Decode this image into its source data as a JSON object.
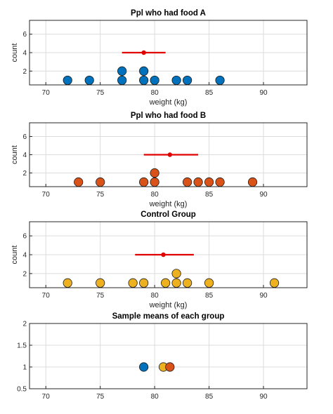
{
  "chart_data": [
    {
      "type": "scatter",
      "title": "Ppl who had food A",
      "xlabel": "weight (kg)",
      "ylabel": "count",
      "xlim": [
        68.5,
        94
      ],
      "ylim": [
        0.5,
        7.5
      ],
      "xticks": [
        70,
        75,
        80,
        85,
        90
      ],
      "yticks": [
        2,
        4,
        6
      ],
      "grid": true,
      "color": "#0072BD",
      "points": [
        [
          72,
          1
        ],
        [
          74,
          1
        ],
        [
          77,
          1
        ],
        [
          77,
          2
        ],
        [
          79,
          1
        ],
        [
          79,
          2
        ],
        [
          80,
          1
        ],
        [
          82,
          1
        ],
        [
          83,
          1
        ],
        [
          86,
          1
        ]
      ],
      "mean": {
        "x": 79,
        "y": 4,
        "lo": 77,
        "hi": 81,
        "color": "#e00000"
      }
    },
    {
      "type": "scatter",
      "title": "Ppl who had food B",
      "xlabel": "weight (kg)",
      "ylabel": "count",
      "xlim": [
        68.5,
        94
      ],
      "ylim": [
        0.5,
        7.5
      ],
      "xticks": [
        70,
        75,
        80,
        85,
        90
      ],
      "yticks": [
        2,
        4,
        6
      ],
      "grid": true,
      "color": "#D95319",
      "points": [
        [
          73,
          1
        ],
        [
          75,
          1
        ],
        [
          79,
          1
        ],
        [
          80,
          1
        ],
        [
          80,
          2
        ],
        [
          83,
          1
        ],
        [
          84,
          1
        ],
        [
          85,
          1
        ],
        [
          86,
          1
        ],
        [
          89,
          1
        ]
      ],
      "mean": {
        "x": 81.4,
        "y": 4,
        "lo": 79,
        "hi": 84,
        "color": "#e00000"
      }
    },
    {
      "type": "scatter",
      "title": "Control Group",
      "xlabel": "weight (kg)",
      "ylabel": "count",
      "xlim": [
        68.5,
        94
      ],
      "ylim": [
        0.5,
        7.5
      ],
      "xticks": [
        70,
        75,
        80,
        85,
        90
      ],
      "yticks": [
        2,
        4,
        6
      ],
      "grid": true,
      "color": "#EDB120",
      "points": [
        [
          72,
          1
        ],
        [
          75,
          1
        ],
        [
          78,
          1
        ],
        [
          79,
          1
        ],
        [
          81,
          1
        ],
        [
          82,
          1
        ],
        [
          82,
          2
        ],
        [
          83,
          1
        ],
        [
          85,
          1
        ],
        [
          91,
          1
        ]
      ],
      "mean": {
        "x": 80.8,
        "y": 4,
        "lo": 78.2,
        "hi": 83.6,
        "color": "#e00000"
      }
    },
    {
      "type": "scatter",
      "title": "Sample means of each group",
      "xlabel": "",
      "ylabel": "",
      "xlim": [
        68.5,
        94
      ],
      "ylim": [
        0.5,
        2
      ],
      "xticks": [
        70,
        75,
        80,
        85,
        90
      ],
      "yticks": [
        0.5,
        1,
        1.5,
        2
      ],
      "grid": true,
      "series": [
        {
          "color": "#0072BD",
          "points": [
            [
              79,
              1
            ]
          ]
        },
        {
          "color": "#EDB120",
          "points": [
            [
              80.8,
              1
            ]
          ]
        },
        {
          "color": "#D95319",
          "points": [
            [
              81.4,
              1
            ]
          ]
        }
      ]
    }
  ]
}
